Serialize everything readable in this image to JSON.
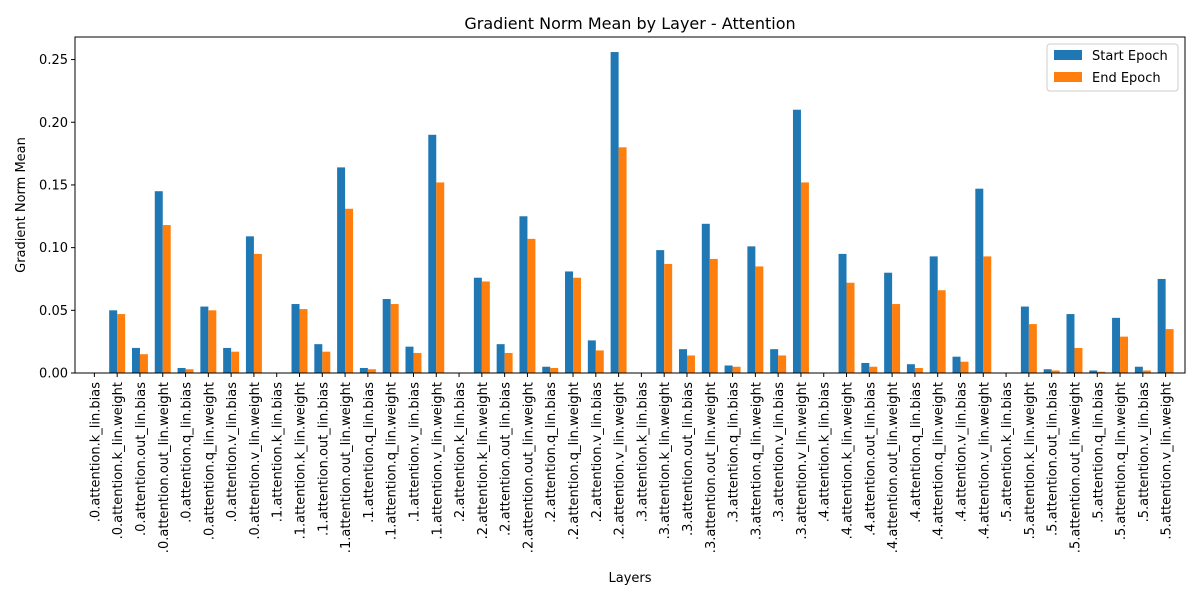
{
  "chart_data": {
    "type": "bar",
    "title": "Gradient Norm Mean by Layer - Attention",
    "xlabel": "Layers",
    "ylabel": "Gradient Norm Mean",
    "ylim": [
      0,
      0.268
    ],
    "yticks": [
      0.0,
      0.05,
      0.1,
      0.15,
      0.2,
      0.25
    ],
    "ytick_labels": [
      "0.00",
      "0.05",
      "0.10",
      "0.15",
      "0.20",
      "0.25"
    ],
    "grid": false,
    "legend_position": "top-right",
    "categories": [
      ".0.attention.k_lin.bias",
      ".0.attention.k_lin.weight",
      ".0.attention.out_lin.bias",
      ".0.attention.out_lin.weight",
      ".0.attention.q_lin.bias",
      ".0.attention.q_lin.weight",
      ".0.attention.v_lin.bias",
      ".0.attention.v_lin.weight",
      ".1.attention.k_lin.bias",
      ".1.attention.k_lin.weight",
      ".1.attention.out_lin.bias",
      ".1.attention.out_lin.weight",
      ".1.attention.q_lin.bias",
      ".1.attention.q_lin.weight",
      ".1.attention.v_lin.bias",
      ".1.attention.v_lin.weight",
      ".2.attention.k_lin.bias",
      ".2.attention.k_lin.weight",
      ".2.attention.out_lin.bias",
      ".2.attention.out_lin.weight",
      ".2.attention.q_lin.bias",
      ".2.attention.q_lin.weight",
      ".2.attention.v_lin.bias",
      ".2.attention.v_lin.weight",
      ".3.attention.k_lin.bias",
      ".3.attention.k_lin.weight",
      ".3.attention.out_lin.bias",
      ".3.attention.out_lin.weight",
      ".3.attention.q_lin.bias",
      ".3.attention.q_lin.weight",
      ".3.attention.v_lin.bias",
      ".3.attention.v_lin.weight",
      ".4.attention.k_lin.bias",
      ".4.attention.k_lin.weight",
      ".4.attention.out_lin.bias",
      ".4.attention.out_lin.weight",
      ".4.attention.q_lin.bias",
      ".4.attention.q_lin.weight",
      ".4.attention.v_lin.bias",
      ".4.attention.v_lin.weight",
      ".5.attention.k_lin.bias",
      ".5.attention.k_lin.weight",
      ".5.attention.out_lin.bias",
      ".5.attention.out_lin.weight",
      ".5.attention.q_lin.bias",
      ".5.attention.q_lin.weight",
      ".5.attention.v_lin.bias",
      ".5.attention.v_lin.weight"
    ],
    "series": [
      {
        "name": "Start Epoch",
        "color": "#1f77b4",
        "values": [
          0.0,
          0.05,
          0.02,
          0.145,
          0.004,
          0.053,
          0.02,
          0.109,
          0.0,
          0.055,
          0.023,
          0.164,
          0.004,
          0.059,
          0.021,
          0.19,
          0.0,
          0.076,
          0.023,
          0.125,
          0.005,
          0.081,
          0.026,
          0.256,
          0.0,
          0.098,
          0.019,
          0.119,
          0.006,
          0.101,
          0.019,
          0.21,
          0.0,
          0.095,
          0.008,
          0.08,
          0.007,
          0.093,
          0.013,
          0.147,
          0.0,
          0.053,
          0.003,
          0.047,
          0.002,
          0.044,
          0.005,
          0.075
        ]
      },
      {
        "name": "End Epoch",
        "color": "#ff7f0e",
        "values": [
          0.0,
          0.047,
          0.015,
          0.118,
          0.003,
          0.05,
          0.017,
          0.095,
          0.0,
          0.051,
          0.017,
          0.131,
          0.003,
          0.055,
          0.016,
          0.152,
          0.0,
          0.073,
          0.016,
          0.107,
          0.004,
          0.076,
          0.018,
          0.18,
          0.0,
          0.087,
          0.014,
          0.091,
          0.005,
          0.085,
          0.014,
          0.152,
          0.0,
          0.072,
          0.005,
          0.055,
          0.004,
          0.066,
          0.009,
          0.093,
          0.0,
          0.039,
          0.002,
          0.02,
          0.001,
          0.029,
          0.002,
          0.035
        ]
      }
    ]
  }
}
